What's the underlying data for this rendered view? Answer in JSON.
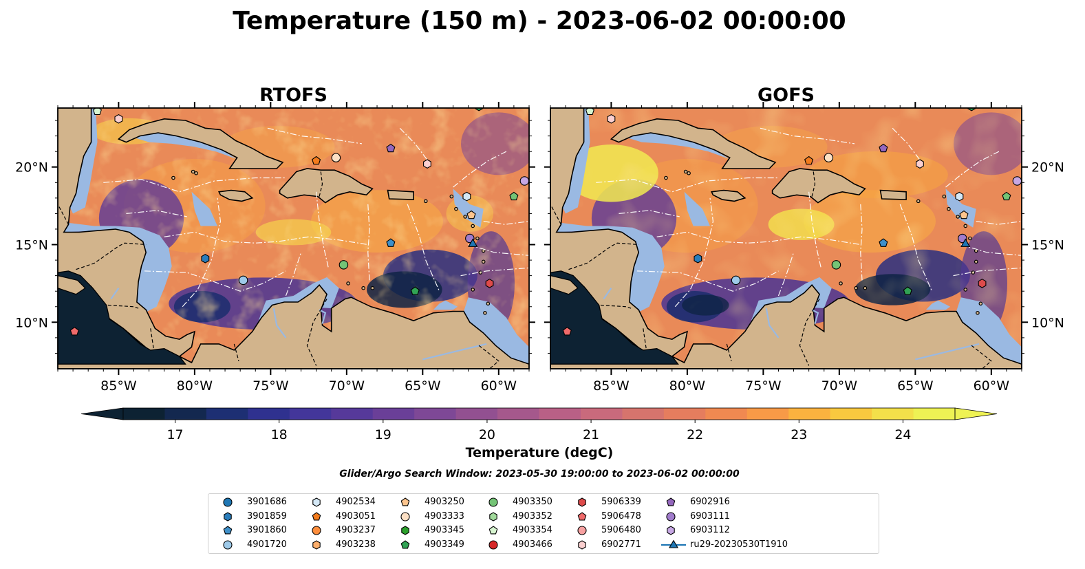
{
  "figure": {
    "title": "Temperature (150 m) - 2023-06-02 00:00:00",
    "panels": [
      {
        "title": "RTOFS",
        "variant": "rtofs"
      },
      {
        "title": "GOFS",
        "variant": "gofs"
      }
    ],
    "x_ticks": [
      "85°W",
      "80°W",
      "75°W",
      "70°W",
      "65°W",
      "60°W"
    ],
    "y_ticks": [
      "20°N",
      "15°N",
      "10°N"
    ],
    "colorbar": {
      "ticks": [
        "17",
        "18",
        "19",
        "20",
        "21",
        "22",
        "23",
        "24"
      ],
      "label": "Temperature (degC)",
      "min": 16.5,
      "max": 24.5,
      "colors": [
        "#0d2233",
        "#13284f",
        "#1d2f73",
        "#2f318f",
        "#43369a",
        "#56399a",
        "#6a3f98",
        "#7e4896",
        "#925091",
        "#a5588c",
        "#b96086",
        "#c96a7c",
        "#d6746d",
        "#e57d5e",
        "#f08951",
        "#f89a47",
        "#fbb23f",
        "#f9c93f",
        "#f3e04a",
        "#eef254"
      ]
    },
    "search_window": "Glider/Argo Search Window: 2023-05-30 19:00:00 to 2023-06-02 00:00:00"
  },
  "map_extent": {
    "lon_min": -89,
    "lon_max": -58,
    "lat_min": 7,
    "lat_max": 23.8
  },
  "colors": {
    "land": "#d2b48c",
    "shelf": "#9ab9e2",
    "deep_cold": "#0d2233"
  },
  "legend": [
    {
      "label": "3901686",
      "shape": "circle",
      "color": "#1f77b4"
    },
    {
      "label": "3901859",
      "shape": "hexagon",
      "color": "#2a7dbb"
    },
    {
      "label": "3901860",
      "shape": "pentagon",
      "color": "#3f90c9"
    },
    {
      "label": "4901720",
      "shape": "circle",
      "color": "#9ecae9"
    },
    {
      "label": "4902534",
      "shape": "hexagon",
      "color": "#d4e8f6"
    },
    {
      "label": "4903051",
      "shape": "pentagon",
      "color": "#f27b1d"
    },
    {
      "label": "4903237",
      "shape": "circle",
      "color": "#fd8d3c"
    },
    {
      "label": "4903238",
      "shape": "hexagon",
      "color": "#fdae6b"
    },
    {
      "label": "4903250",
      "shape": "pentagon",
      "color": "#fdc58e"
    },
    {
      "label": "4903333",
      "shape": "circle",
      "color": "#fde0c5"
    },
    {
      "label": "4903345",
      "shape": "hexagon",
      "color": "#2ca02c"
    },
    {
      "label": "4903349",
      "shape": "pentagon",
      "color": "#31a354"
    },
    {
      "label": "4903350",
      "shape": "circle",
      "color": "#74c476"
    },
    {
      "label": "4903352",
      "shape": "hexagon",
      "color": "#a1d99b"
    },
    {
      "label": "4903354",
      "shape": "pentagon",
      "color": "#d7f5d0"
    },
    {
      "label": "4903466",
      "shape": "circle",
      "color": "#d62728"
    },
    {
      "label": "5906339",
      "shape": "hexagon",
      "color": "#de4b4b"
    },
    {
      "label": "5906478",
      "shape": "pentagon",
      "color": "#f06a6a"
    },
    {
      "label": "5906480",
      "shape": "circle",
      "color": "#f7a1a1"
    },
    {
      "label": "6902771",
      "shape": "hexagon",
      "color": "#fbd0d0"
    },
    {
      "label": "6902916",
      "shape": "pentagon",
      "color": "#9467bd"
    },
    {
      "label": "6903111",
      "shape": "circle",
      "color": "#a17ccc"
    },
    {
      "label": "6903112",
      "shape": "hexagon",
      "color": "#c7a8e4"
    },
    {
      "label": "ru29-20230530T1910",
      "shape": "triangle-line",
      "color": "#1f77b4"
    }
  ],
  "floats": [
    {
      "lon": -86.4,
      "lat": 23.6,
      "shape": "pentagon",
      "color": "#d7f5d0"
    },
    {
      "lon": -85.0,
      "lat": 23.1,
      "shape": "hexagon",
      "color": "#fbd0d0"
    },
    {
      "lon": -61.3,
      "lat": 23.9,
      "shape": "hexagon",
      "color": "#31a354"
    },
    {
      "lon": -67.1,
      "lat": 21.2,
      "shape": "pentagon",
      "color": "#9467bd"
    },
    {
      "lon": -72.0,
      "lat": 20.4,
      "shape": "pentagon",
      "color": "#f27b1d"
    },
    {
      "lon": -70.7,
      "lat": 20.6,
      "shape": "circle",
      "color": "#fde0c5"
    },
    {
      "lon": -64.7,
      "lat": 20.2,
      "shape": "hexagon",
      "color": "#fbd0d0"
    },
    {
      "lon": -58.3,
      "lat": 19.1,
      "shape": "circle",
      "color": "#c7a8e4"
    },
    {
      "lon": -59.0,
      "lat": 18.1,
      "shape": "pentagon",
      "color": "#74c476"
    },
    {
      "lon": -62.1,
      "lat": 18.1,
      "shape": "hexagon",
      "color": "#d4e8f6"
    },
    {
      "lon": -61.8,
      "lat": 16.9,
      "shape": "pentagon",
      "color": "#fdc58e"
    },
    {
      "lon": -61.9,
      "lat": 15.4,
      "shape": "circle",
      "color": "#a17ccc"
    },
    {
      "lon": -67.1,
      "lat": 15.1,
      "shape": "pentagon",
      "color": "#3f90c9"
    },
    {
      "lon": -79.3,
      "lat": 14.1,
      "shape": "hexagon",
      "color": "#2a7dbb"
    },
    {
      "lon": -70.2,
      "lat": 13.7,
      "shape": "circle",
      "color": "#74c476"
    },
    {
      "lon": -76.8,
      "lat": 12.7,
      "shape": "circle",
      "color": "#9ecae9"
    },
    {
      "lon": -60.6,
      "lat": 12.5,
      "shape": "hexagon",
      "color": "#de4b4b"
    },
    {
      "lon": -65.5,
      "lat": 12.0,
      "shape": "pentagon",
      "color": "#31a354"
    },
    {
      "lon": -87.9,
      "lat": 9.4,
      "shape": "pentagon",
      "color": "#f06a6a"
    },
    {
      "lon": -61.7,
      "lat": 15.1,
      "shape": "triangle",
      "color": "#1f77b4"
    }
  ]
}
